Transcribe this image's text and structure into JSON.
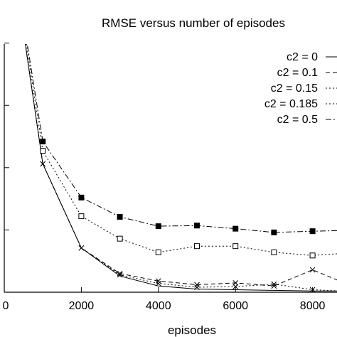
{
  "chart_data": {
    "type": "line",
    "title": "RMSE versus number of episodes",
    "xlabel": "episodes",
    "ylabel": "",
    "xlim": [
      0,
      8700
    ],
    "ylim": [
      0,
      5.6
    ],
    "xticks": [
      0,
      2000,
      4000,
      6000,
      8000
    ],
    "xtick_labels": [
      "0",
      "2000",
      "4000",
      "6000",
      "8000"
    ],
    "yticks": [
      0,
      1,
      2,
      3,
      4,
      5
    ],
    "ytick_labels": [
      "",
      "",
      "",
      "",
      "",
      ""
    ],
    "grid": false,
    "legend_position": "top-right",
    "x": [
      0,
      1000,
      2000,
      3000,
      4000,
      5000,
      6000,
      7000,
      8000,
      8700
    ],
    "series": [
      {
        "name": "c2 = 0",
        "dash": "solid",
        "marker": "none",
        "values": [
          6.3,
          2.06,
          0.71,
          0.26,
          0.1,
          0.05,
          0.04,
          0.03,
          0.02,
          0.02
        ]
      },
      {
        "name": "c2 = 0.1",
        "dash": "dash",
        "marker": "x",
        "values": [
          6.3,
          2.06,
          0.71,
          0.3,
          0.18,
          0.12,
          0.15,
          0.1,
          0.36,
          0.18
        ]
      },
      {
        "name": "c2 = 0.15",
        "dash": "dot",
        "marker": "x",
        "values": [
          6.3,
          2.06,
          0.71,
          0.28,
          0.14,
          0.08,
          0.09,
          0.13,
          0.04,
          0.02
        ]
      },
      {
        "name": "c2 = 0.185",
        "dash": "dot",
        "marker": "open-square",
        "values": [
          6.3,
          2.27,
          1.22,
          0.86,
          0.64,
          0.74,
          0.74,
          0.64,
          0.59,
          0.62
        ]
      },
      {
        "name": "c2 = 0.5",
        "dash": "dashdot",
        "marker": "filled-square",
        "values": [
          6.3,
          2.42,
          1.52,
          1.21,
          1.06,
          1.07,
          1.02,
          0.96,
          0.98,
          0.99
        ]
      }
    ]
  }
}
